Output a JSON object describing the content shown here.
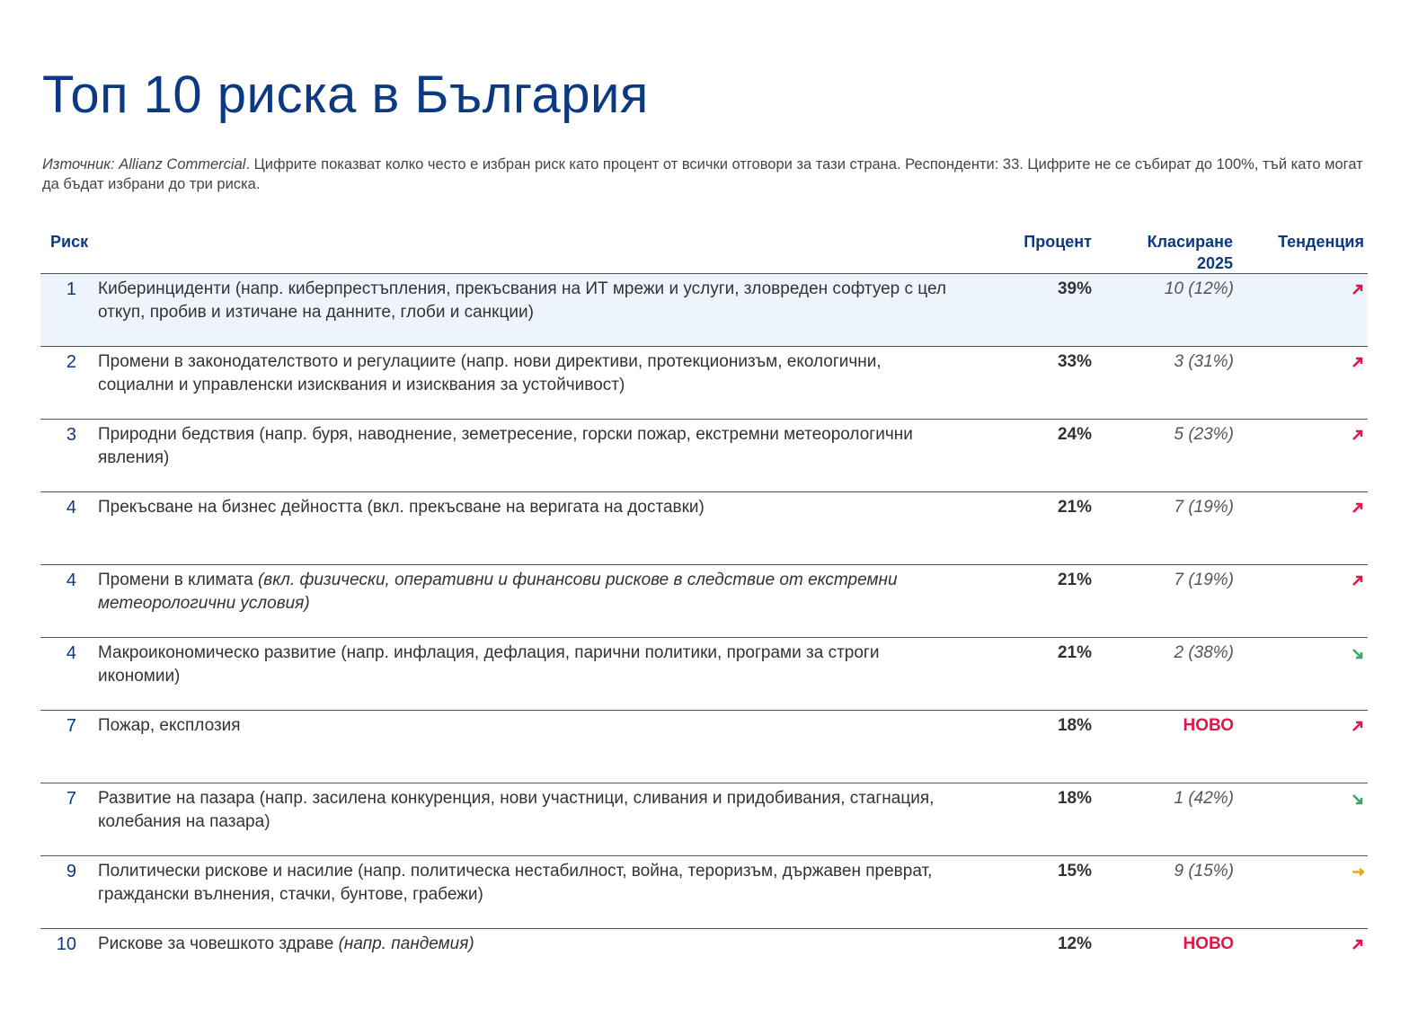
{
  "header": {
    "title": "Топ 10 риска в България",
    "source_label": "Източник: Allianz Commercial",
    "source_text": ". Цифрите показват колко често е избран риск като процент от всички отговори за тази страна. Респонденти: 33. Цифрите не се събират до 100%, тъй като могат да бъдат избрани до три риска."
  },
  "table": {
    "columns": [
      "Риск",
      "Процент",
      "Класиране 2025",
      "Тенденция"
    ],
    "rows": [
      {
        "rank": "1",
        "risk": "Киберинциденти (напр. киберпрестъпления, прекъсвания на ИТ мрежи и услуги, зловреден софтуер с цел откуп, пробив и изтичане на данните, глоби и санкции)",
        "percent": "39%",
        "prev": "10 (12%)",
        "trend": "up"
      },
      {
        "rank": "2",
        "risk": "Промени в законодателството и регулациите (напр. нови директиви, протекционизъм, екологични, социални и управленски изисквания и изисквания за устойчивост)",
        "percent": "33%",
        "prev": "3 (31%)",
        "trend": "up"
      },
      {
        "rank": "3",
        "risk": "Природни бедствия (напр. буря, наводнение, земетресение, горски пожар, екстремни метеорологични явления)",
        "percent": "24%",
        "prev": "5 (23%)",
        "trend": "up"
      },
      {
        "rank": "4",
        "risk": "Прекъсване на бизнес дейността  (вкл. прекъсване на веригата на доставки)",
        "percent": "21%",
        "prev": "7 (19%)",
        "trend": "up"
      },
      {
        "rank": "4",
        "risk": "Промени в климата",
        "risk_note": "(вкл. физически, оперативни и финансови рискове в следствие от екстремни метеорологични условия)",
        "percent": "21%",
        "prev": "7 (19%)",
        "trend": "up"
      },
      {
        "rank": "4",
        "risk": "Макроикономическо развитие (напр. инфлация, дефлация, парични политики, програми за строги икономии)",
        "percent": "21%",
        "prev": "2 (38%)",
        "trend": "down"
      },
      {
        "rank": "7",
        "risk": "Пожар, експлозия",
        "percent": "18%",
        "prev_new": "НОВО",
        "trend": "up"
      },
      {
        "rank": "7",
        "risk": "Развитие на пазара (напр. засилена конкуренция, нови участници, сливания и придобивания, стагнация, колебания на пазара)",
        "percent": "18%",
        "prev": "1 (42%)",
        "trend": "down"
      },
      {
        "rank": "9",
        "risk": "Политически рискове и насилие (напр. политическа нестабилност, война, тероризъм, държавен преврат, граждански вълнения, стачки, бунтове, грабежи)",
        "percent": "15%",
        "prev": "9 (15%)",
        "trend": "flat"
      },
      {
        "rank": "10",
        "risk": "Рискове за човешкото здраве",
        "risk_note": "(напр. пандемия)",
        "percent": "12%",
        "prev_new": "НОВО",
        "trend": "up"
      }
    ]
  }
}
